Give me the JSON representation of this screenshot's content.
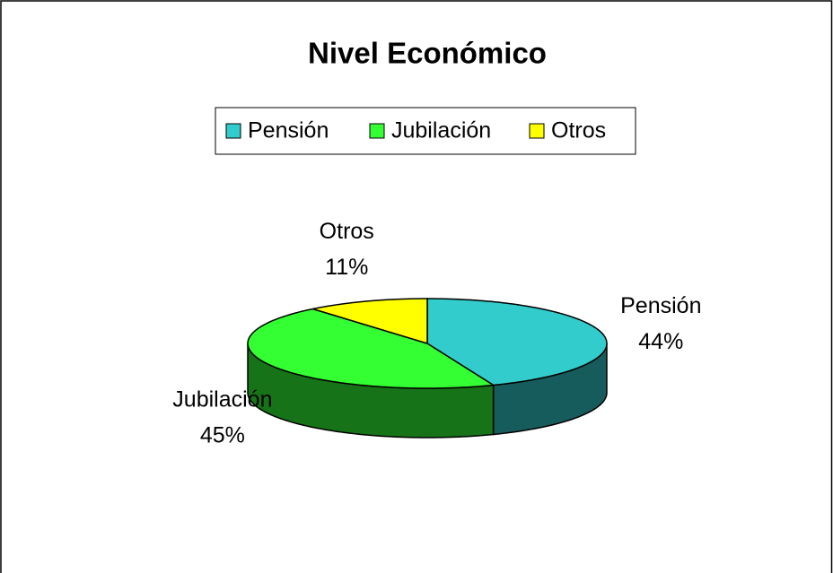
{
  "chart_data": {
    "type": "pie3d",
    "title": "Nivel Económico",
    "categories": [
      "Pensión",
      "Jubilación",
      "Otros"
    ],
    "values": [
      44,
      45,
      11
    ],
    "value_labels": [
      "44%",
      "45%",
      "11%"
    ],
    "colors": [
      "#33cccc",
      "#33ff33",
      "#ffff00"
    ],
    "legend": "top"
  }
}
